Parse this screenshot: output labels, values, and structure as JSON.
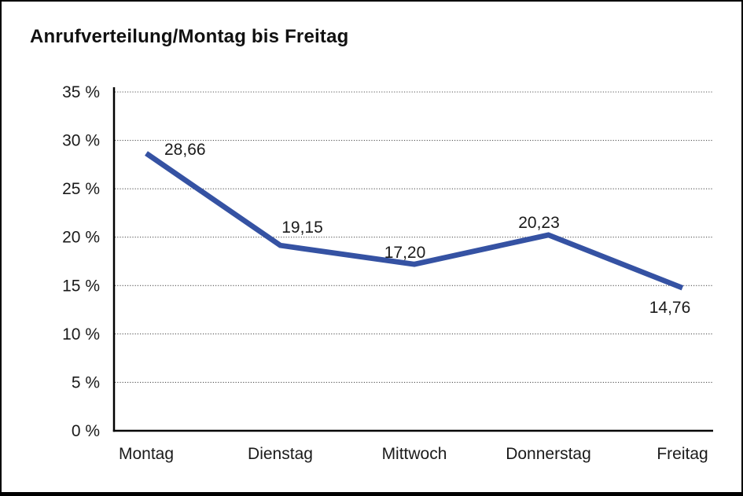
{
  "title": "Anrufverteilung/Montag bis Freitag",
  "chart_data": {
    "type": "line",
    "title": "Anrufverteilung/Montag bis Freitag",
    "categories": [
      "Montag",
      "Dienstag",
      "Mittwoch",
      "Donnerstag",
      "Freitag"
    ],
    "series": [
      {
        "name": "Anrufverteilung",
        "values": [
          28.66,
          19.15,
          17.2,
          20.23,
          14.76
        ]
      }
    ],
    "value_labels": [
      "28,66",
      "19,15",
      "17,20",
      "20,23",
      "14,76"
    ],
    "xlabel": "",
    "ylabel": "",
    "ylim": [
      0,
      35
    ],
    "y_ticks": [
      {
        "value": 35,
        "label": "35 %"
      },
      {
        "value": 30,
        "label": "30 %"
      },
      {
        "value": 25,
        "label": "25 %"
      },
      {
        "value": 20,
        "label": "20 %"
      },
      {
        "value": 15,
        "label": "15 %"
      },
      {
        "value": 10,
        "label": "10 %"
      },
      {
        "value": 5,
        "label": "5 %"
      },
      {
        "value": 0,
        "label": "0 %"
      }
    ],
    "grid": "horizontal-dotted",
    "legend": "none",
    "colors": {
      "line": "#3552A3",
      "axis": "#000000",
      "gridline": "#555555",
      "text": "#1a1a1a"
    }
  }
}
